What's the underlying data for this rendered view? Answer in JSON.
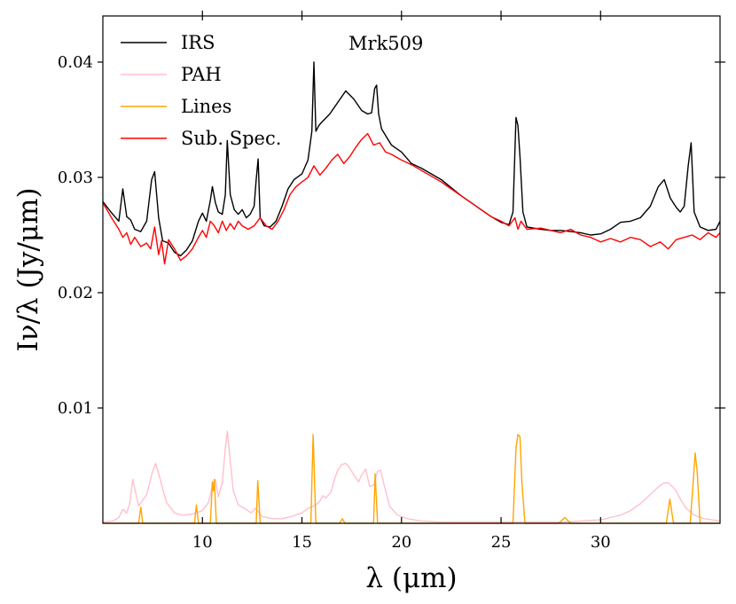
{
  "chart_data": {
    "type": "line",
    "title": "",
    "annotation": "Mrk509",
    "xlabel": "λ (μm)",
    "ylabel": "Iν/λ (Jy/μm)",
    "xlim": [
      5,
      36
    ],
    "ylim": [
      0,
      0.044
    ],
    "xticks": [
      10,
      15,
      20,
      25,
      30
    ],
    "xtick_labels": [
      "10",
      "15",
      "20",
      "25",
      "30"
    ],
    "yticks": [
      0.01,
      0.02,
      0.03,
      0.04
    ],
    "ytick_labels": [
      "0.01",
      "0.02",
      "0.03",
      "0.04"
    ],
    "grid": false,
    "legend_position": "top-left",
    "series": [
      {
        "name": "IRS",
        "color": "#000000",
        "x": [
          5.0,
          5.4,
          5.8,
          6.0,
          6.2,
          6.4,
          6.6,
          6.9,
          7.2,
          7.45,
          7.6,
          7.8,
          8.0,
          8.3,
          8.6,
          8.9,
          9.2,
          9.5,
          9.8,
          10.0,
          10.2,
          10.4,
          10.5,
          10.65,
          10.8,
          11.0,
          11.15,
          11.25,
          11.4,
          11.6,
          11.8,
          12.0,
          12.2,
          12.4,
          12.6,
          12.7,
          12.8,
          12.9,
          13.1,
          13.4,
          13.7,
          14.0,
          14.3,
          14.6,
          15.0,
          15.3,
          15.5,
          15.6,
          15.7,
          15.85,
          16.0,
          16.4,
          16.8,
          17.2,
          17.6,
          18.0,
          18.3,
          18.5,
          18.65,
          18.75,
          18.85,
          19.0,
          19.5,
          20.0,
          20.5,
          21.0,
          21.5,
          22.0,
          22.5,
          23.0,
          23.5,
          24.0,
          24.5,
          25.0,
          25.4,
          25.6,
          25.75,
          25.85,
          25.95,
          26.1,
          26.3,
          27.0,
          27.5,
          28.0,
          28.5,
          29.0,
          29.5,
          30.0,
          30.5,
          31.0,
          31.5,
          32.0,
          32.5,
          32.9,
          33.2,
          33.5,
          33.8,
          34.0,
          34.2,
          34.4,
          34.55,
          34.7,
          35.0,
          35.4,
          35.8,
          36.0
        ],
        "y": [
          0.0279,
          0.027,
          0.0262,
          0.029,
          0.0266,
          0.0263,
          0.0255,
          0.0253,
          0.0262,
          0.0298,
          0.0305,
          0.0265,
          0.0245,
          0.0243,
          0.0235,
          0.0232,
          0.0237,
          0.0245,
          0.0262,
          0.0269,
          0.0262,
          0.028,
          0.0292,
          0.0278,
          0.027,
          0.0268,
          0.0285,
          0.0332,
          0.0285,
          0.0272,
          0.0268,
          0.0272,
          0.0265,
          0.0268,
          0.0275,
          0.0298,
          0.0316,
          0.0265,
          0.0258,
          0.0257,
          0.0262,
          0.0275,
          0.029,
          0.0298,
          0.0303,
          0.0315,
          0.034,
          0.04,
          0.034,
          0.0345,
          0.0348,
          0.0355,
          0.0365,
          0.0375,
          0.0368,
          0.0358,
          0.0355,
          0.0356,
          0.0377,
          0.038,
          0.0355,
          0.0342,
          0.0328,
          0.0322,
          0.0312,
          0.0308,
          0.0303,
          0.0298,
          0.0291,
          0.0284,
          0.0278,
          0.0272,
          0.0266,
          0.0261,
          0.0259,
          0.027,
          0.0352,
          0.0345,
          0.0318,
          0.027,
          0.0257,
          0.0255,
          0.0254,
          0.0254,
          0.0253,
          0.0252,
          0.025,
          0.0251,
          0.0255,
          0.0261,
          0.0262,
          0.0265,
          0.0275,
          0.0292,
          0.0298,
          0.0282,
          0.0274,
          0.027,
          0.0275,
          0.031,
          0.033,
          0.027,
          0.0257,
          0.0254,
          0.0255,
          0.0262
        ]
      },
      {
        "name": "PAH",
        "color": "#ffc0cb",
        "x": [
          5.0,
          5.5,
          5.8,
          6.0,
          6.2,
          6.35,
          6.5,
          6.8,
          7.2,
          7.5,
          7.65,
          7.85,
          8.2,
          8.6,
          9.0,
          9.5,
          10.0,
          10.3,
          10.5,
          10.65,
          10.8,
          11.0,
          11.15,
          11.25,
          11.35,
          11.55,
          11.8,
          12.1,
          12.45,
          12.65,
          12.8,
          13.0,
          13.5,
          14.0,
          14.5,
          15.0,
          15.3,
          15.6,
          15.85,
          16.05,
          16.2,
          16.45,
          16.65,
          16.8,
          17.0,
          17.2,
          17.4,
          17.6,
          17.85,
          18.0,
          18.2,
          18.4,
          18.6,
          18.8,
          18.95,
          19.1,
          19.4,
          19.8,
          20.3,
          21.0,
          22.0,
          23.0,
          24.0,
          25.0,
          26.0,
          27.0,
          28.0,
          29.0,
          30.0,
          30.5,
          31.0,
          31.5,
          32.0,
          32.5,
          32.8,
          33.0,
          33.2,
          33.4,
          33.6,
          33.8,
          34.0,
          34.3,
          34.7,
          35.2,
          35.6,
          36.0
        ],
        "y": [
          0.0001,
          0.0002,
          0.0005,
          0.0012,
          0.0009,
          0.0017,
          0.0038,
          0.0015,
          0.0025,
          0.0045,
          0.0052,
          0.004,
          0.0018,
          0.0009,
          0.0007,
          0.0008,
          0.0011,
          0.0018,
          0.0032,
          0.0038,
          0.0023,
          0.0035,
          0.0065,
          0.008,
          0.0062,
          0.0028,
          0.0016,
          0.0013,
          0.0009,
          0.0013,
          0.001,
          0.0006,
          0.0004,
          0.0004,
          0.0006,
          0.0009,
          0.0013,
          0.0015,
          0.0018,
          0.0024,
          0.0022,
          0.0027,
          0.0039,
          0.0046,
          0.0051,
          0.0052,
          0.0048,
          0.0042,
          0.0036,
          0.0042,
          0.0047,
          0.0032,
          0.0033,
          0.0045,
          0.0046,
          0.0035,
          0.0015,
          0.0007,
          0.0004,
          0.0002,
          0.0001,
          0.0001,
          0.0001,
          0.0001,
          0.0001,
          0.0001,
          0.0001,
          0.0002,
          0.0003,
          0.0005,
          0.0007,
          0.0011,
          0.0017,
          0.0025,
          0.003,
          0.0033,
          0.0035,
          0.0035,
          0.0032,
          0.0028,
          0.0021,
          0.0013,
          0.0007,
          0.0004,
          0.0003,
          0.0002
        ]
      },
      {
        "name": "Lines",
        "color": "#ffa500",
        "x": [
          5.0,
          6.8,
          6.9,
          6.95,
          7.0,
          9.6,
          9.7,
          9.75,
          9.8,
          10.4,
          10.5,
          10.55,
          10.6,
          10.7,
          12.7,
          12.78,
          12.82,
          12.9,
          15.45,
          15.52,
          15.56,
          15.62,
          15.7,
          16.9,
          17.03,
          17.16,
          18.6,
          18.68,
          18.72,
          18.8,
          25.6,
          25.75,
          25.85,
          25.95,
          26.05,
          26.2,
          27.9,
          28.2,
          28.5,
          33.3,
          33.48,
          33.66,
          34.5,
          34.65,
          34.75,
          34.85,
          35.0,
          36.0
        ],
        "y": [
          0,
          0,
          0.0014,
          0.0008,
          0,
          0,
          0.0016,
          0.0008,
          0,
          0,
          0.0036,
          0.0028,
          0.0038,
          0,
          0,
          0.0037,
          0.0025,
          0,
          0,
          0.005,
          0.0077,
          0.0045,
          0,
          0,
          0.0004,
          0,
          0,
          0.0043,
          0.0028,
          0,
          0,
          0.0065,
          0.0077,
          0.0075,
          0.0035,
          0,
          0,
          0.0005,
          0,
          0,
          0.0021,
          0,
          0,
          0.0035,
          0.0061,
          0.0045,
          0,
          0
        ]
      },
      {
        "name": "Sub. Spec.",
        "color": "#ff0000",
        "x": [
          5.0,
          5.4,
          5.8,
          6.0,
          6.2,
          6.4,
          6.6,
          6.9,
          7.2,
          7.4,
          7.6,
          7.8,
          7.95,
          8.1,
          8.3,
          8.6,
          8.9,
          9.2,
          9.5,
          9.8,
          10.0,
          10.2,
          10.4,
          10.6,
          10.8,
          11.0,
          11.2,
          11.4,
          11.6,
          11.8,
          12.0,
          12.3,
          12.6,
          12.9,
          13.2,
          13.5,
          13.8,
          14.1,
          14.4,
          14.7,
          15.0,
          15.3,
          15.6,
          15.9,
          16.2,
          16.5,
          16.8,
          17.1,
          17.4,
          17.7,
          18.0,
          18.3,
          18.6,
          18.9,
          19.2,
          19.5,
          20.0,
          20.5,
          21.0,
          21.5,
          22.0,
          22.5,
          23.0,
          23.5,
          24.0,
          24.5,
          25.0,
          25.4,
          25.7,
          25.85,
          26.0,
          26.3,
          27.0,
          27.5,
          28.0,
          28.5,
          29.0,
          29.5,
          30.0,
          30.5,
          31.0,
          31.5,
          32.0,
          32.5,
          33.0,
          33.4,
          33.8,
          34.2,
          34.6,
          35.0,
          35.4,
          35.8,
          36.0
        ],
        "y": [
          0.0278,
          0.0266,
          0.0255,
          0.0248,
          0.0252,
          0.0242,
          0.0248,
          0.024,
          0.0243,
          0.0238,
          0.0257,
          0.0233,
          0.0245,
          0.0225,
          0.0246,
          0.0238,
          0.0228,
          0.0232,
          0.0238,
          0.0248,
          0.0254,
          0.0248,
          0.0262,
          0.0258,
          0.0252,
          0.0262,
          0.0254,
          0.026,
          0.0255,
          0.0262,
          0.0258,
          0.0255,
          0.0258,
          0.0265,
          0.0258,
          0.0255,
          0.0262,
          0.0272,
          0.0285,
          0.0292,
          0.0296,
          0.03,
          0.031,
          0.0302,
          0.0308,
          0.0315,
          0.032,
          0.0312,
          0.0318,
          0.0326,
          0.0333,
          0.0338,
          0.0328,
          0.033,
          0.0322,
          0.032,
          0.0315,
          0.0311,
          0.0306,
          0.0301,
          0.0296,
          0.029,
          0.0284,
          0.0278,
          0.0272,
          0.0266,
          0.0262,
          0.0258,
          0.0265,
          0.0255,
          0.0262,
          0.0255,
          0.0256,
          0.0254,
          0.0252,
          0.0255,
          0.025,
          0.0248,
          0.0244,
          0.0247,
          0.0244,
          0.0248,
          0.0246,
          0.024,
          0.0244,
          0.0238,
          0.0246,
          0.0248,
          0.025,
          0.0246,
          0.0252,
          0.0248,
          0.0252
        ]
      }
    ]
  }
}
